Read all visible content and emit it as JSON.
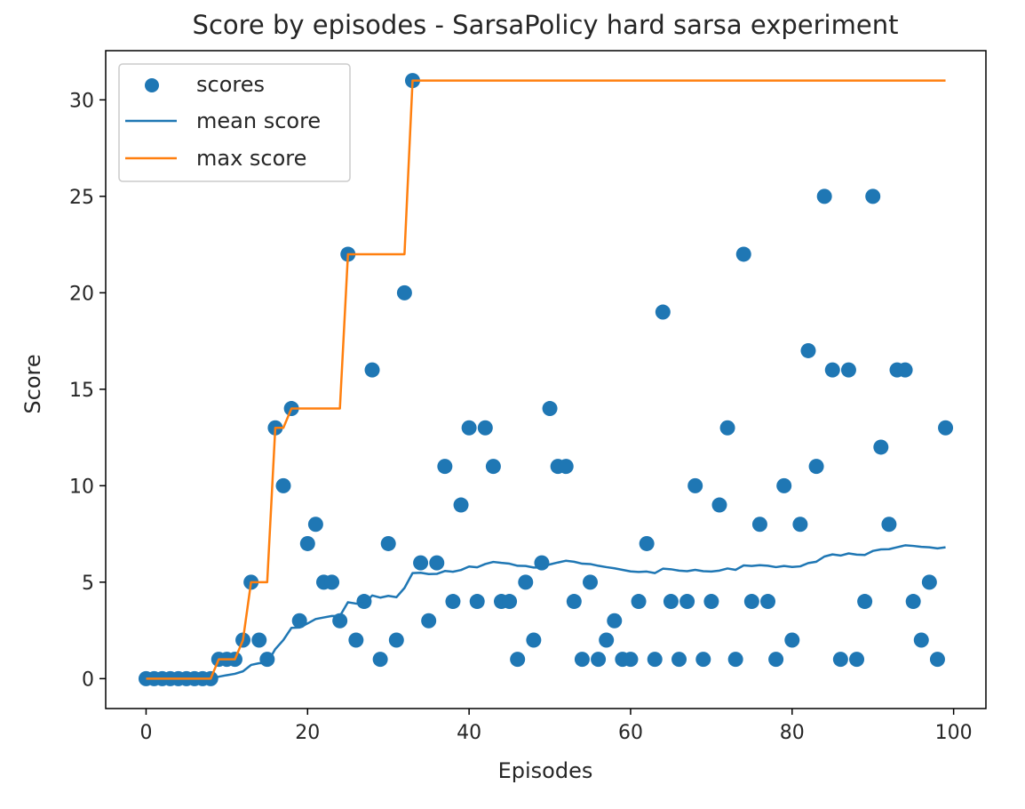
{
  "chart_data": {
    "type": "scatter",
    "title": "Score by episodes - SarsaPolicy hard sarsa experiment",
    "xlabel": "Episodes",
    "ylabel": "Score",
    "xlim": [
      -5,
      104
    ],
    "ylim": [
      -1.55,
      32.55
    ],
    "x_ticks": [
      0,
      20,
      40,
      60,
      80,
      100
    ],
    "y_ticks": [
      0,
      5,
      10,
      15,
      20,
      25,
      30
    ],
    "grid": false,
    "legend_position": "upper left",
    "legend": [
      {
        "label": "scores",
        "kind": "marker",
        "color": "#1f77b4"
      },
      {
        "label": "mean score",
        "kind": "line",
        "color": "#1f77b4"
      },
      {
        "label": "max score",
        "kind": "line",
        "color": "#ff7f0e"
      }
    ],
    "series": [
      {
        "name": "scores",
        "kind": "scatter",
        "color": "#1f77b4",
        "x": [
          0,
          1,
          2,
          3,
          4,
          5,
          6,
          7,
          8,
          9,
          10,
          11,
          12,
          13,
          14,
          15,
          16,
          17,
          18,
          19,
          20,
          21,
          22,
          23,
          24,
          25,
          26,
          27,
          28,
          29,
          30,
          31,
          32,
          33,
          34,
          35,
          36,
          37,
          38,
          39,
          40,
          41,
          42,
          43,
          44,
          45,
          46,
          47,
          48,
          49,
          50,
          51,
          52,
          53,
          54,
          55,
          56,
          57,
          58,
          59,
          60,
          61,
          62,
          63,
          64,
          65,
          66,
          67,
          68,
          69,
          70,
          71,
          72,
          73,
          74,
          75,
          76,
          77,
          78,
          79,
          80,
          81,
          82,
          83,
          84,
          85,
          86,
          87,
          88,
          89,
          90,
          91,
          92,
          93,
          94,
          95,
          96,
          97,
          98,
          99
        ],
        "y": [
          0,
          0,
          0,
          0,
          0,
          0,
          0,
          0,
          0,
          1,
          1,
          1,
          2,
          5,
          2,
          1,
          13,
          10,
          14,
          3,
          7,
          8,
          5,
          5,
          3,
          22,
          2,
          4,
          16,
          1,
          7,
          2,
          20,
          31,
          6,
          3,
          6,
          11,
          4,
          9,
          13,
          4,
          13,
          11,
          4,
          4,
          1,
          5,
          2,
          6,
          14,
          11,
          11,
          4,
          1,
          5,
          1,
          2,
          3,
          1,
          1,
          4,
          7,
          1,
          19,
          4,
          1,
          4,
          10,
          1,
          4,
          9,
          13,
          1,
          22,
          4,
          8,
          4,
          1,
          10,
          2,
          8,
          17,
          11,
          25,
          16,
          1,
          16,
          1,
          4,
          25,
          12,
          8,
          16,
          16,
          4,
          2,
          5,
          1,
          13
        ]
      },
      {
        "name": "mean score",
        "kind": "line",
        "color": "#1f77b4",
        "x": [
          0,
          1,
          2,
          3,
          4,
          5,
          6,
          7,
          8,
          9,
          10,
          11,
          12,
          13,
          14,
          15,
          16,
          17,
          18,
          19,
          20,
          21,
          22,
          23,
          24,
          25,
          26,
          27,
          28,
          29,
          30,
          31,
          32,
          33,
          34,
          35,
          36,
          37,
          38,
          39,
          40,
          41,
          42,
          43,
          44,
          45,
          46,
          47,
          48,
          49,
          50,
          51,
          52,
          53,
          54,
          55,
          56,
          57,
          58,
          59,
          60,
          61,
          62,
          63,
          64,
          65,
          66,
          67,
          68,
          69,
          70,
          71,
          72,
          73,
          74,
          75,
          76,
          77,
          78,
          79,
          80,
          81,
          82,
          83,
          84,
          85,
          86,
          87,
          88,
          89,
          90,
          91,
          92,
          93,
          94,
          95,
          96,
          97,
          98,
          99
        ],
        "y": [
          0,
          0,
          0,
          0,
          0,
          0,
          0,
          0,
          0,
          0.1,
          0.18,
          0.25,
          0.38,
          0.71,
          0.8,
          0.81,
          1.53,
          2.0,
          2.63,
          2.65,
          2.86,
          3.09,
          3.17,
          3.25,
          3.24,
          3.96,
          3.89,
          3.89,
          4.31,
          4.2,
          4.29,
          4.22,
          4.7,
          5.47,
          5.49,
          5.42,
          5.43,
          5.58,
          5.54,
          5.63,
          5.81,
          5.77,
          5.94,
          6.05,
          6.0,
          5.96,
          5.85,
          5.84,
          5.76,
          5.76,
          5.92,
          6.02,
          6.11,
          6.06,
          5.96,
          5.94,
          5.85,
          5.78,
          5.72,
          5.64,
          5.56,
          5.53,
          5.55,
          5.47,
          5.7,
          5.67,
          5.6,
          5.57,
          5.64,
          5.57,
          5.55,
          5.6,
          5.71,
          5.64,
          5.87,
          5.84,
          5.88,
          5.85,
          5.78,
          5.84,
          5.79,
          5.82,
          5.99,
          6.06,
          6.33,
          6.44,
          6.38,
          6.49,
          6.43,
          6.41,
          6.62,
          6.7,
          6.71,
          6.81,
          6.91,
          6.88,
          6.83,
          6.81,
          6.75,
          6.81
        ]
      },
      {
        "name": "max score",
        "kind": "line",
        "color": "#ff7f0e",
        "x": [
          0,
          1,
          2,
          3,
          4,
          5,
          6,
          7,
          8,
          9,
          10,
          11,
          12,
          13,
          14,
          15,
          16,
          17,
          18,
          19,
          20,
          21,
          22,
          23,
          24,
          25,
          26,
          27,
          28,
          29,
          30,
          31,
          32,
          33,
          34,
          35,
          36,
          37,
          38,
          39,
          40,
          41,
          42,
          43,
          44,
          45,
          46,
          47,
          48,
          49,
          50,
          51,
          52,
          53,
          54,
          55,
          56,
          57,
          58,
          59,
          60,
          61,
          62,
          63,
          64,
          65,
          66,
          67,
          68,
          69,
          70,
          71,
          72,
          73,
          74,
          75,
          76,
          77,
          78,
          79,
          80,
          81,
          82,
          83,
          84,
          85,
          86,
          87,
          88,
          89,
          90,
          91,
          92,
          93,
          94,
          95,
          96,
          97,
          98,
          99
        ],
        "y": [
          0,
          0,
          0,
          0,
          0,
          0,
          0,
          0,
          0,
          1,
          1,
          1,
          2,
          5,
          5,
          5,
          13,
          13,
          14,
          14,
          14,
          14,
          14,
          14,
          14,
          22,
          22,
          22,
          22,
          22,
          22,
          22,
          22,
          31,
          31,
          31,
          31,
          31,
          31,
          31,
          31,
          31,
          31,
          31,
          31,
          31,
          31,
          31,
          31,
          31,
          31,
          31,
          31,
          31,
          31,
          31,
          31,
          31,
          31,
          31,
          31,
          31,
          31,
          31,
          31,
          31,
          31,
          31,
          31,
          31,
          31,
          31,
          31,
          31,
          31,
          31,
          31,
          31,
          31,
          31,
          31,
          31,
          31,
          31,
          31,
          31,
          31,
          31,
          31,
          31,
          31,
          31,
          31,
          31,
          31,
          31,
          31,
          31,
          31,
          31
        ]
      }
    ]
  }
}
